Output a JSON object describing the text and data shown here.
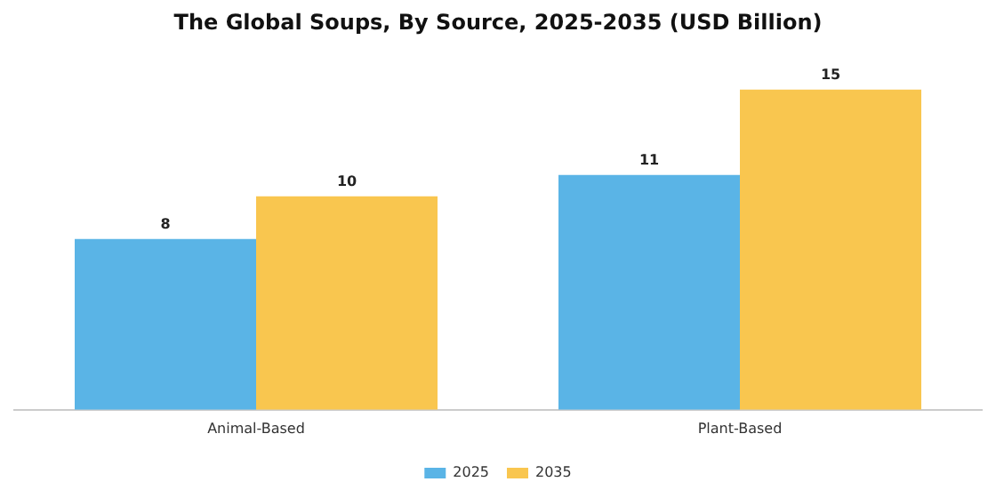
{
  "chart_data": {
    "type": "bar",
    "title": "The Global Soups, By Source, 2025-2035 (USD Billion)",
    "categories": [
      "Animal-Based",
      "Plant-Based"
    ],
    "series": [
      {
        "name": "2025",
        "color": "#5ab4e6",
        "values": [
          8,
          11
        ]
      },
      {
        "name": "2035",
        "color": "#f9c64f",
        "values": [
          10,
          15
        ]
      }
    ],
    "data_labels": true,
    "legend": "bottom",
    "grid": false,
    "tick_labels": "x"
  }
}
